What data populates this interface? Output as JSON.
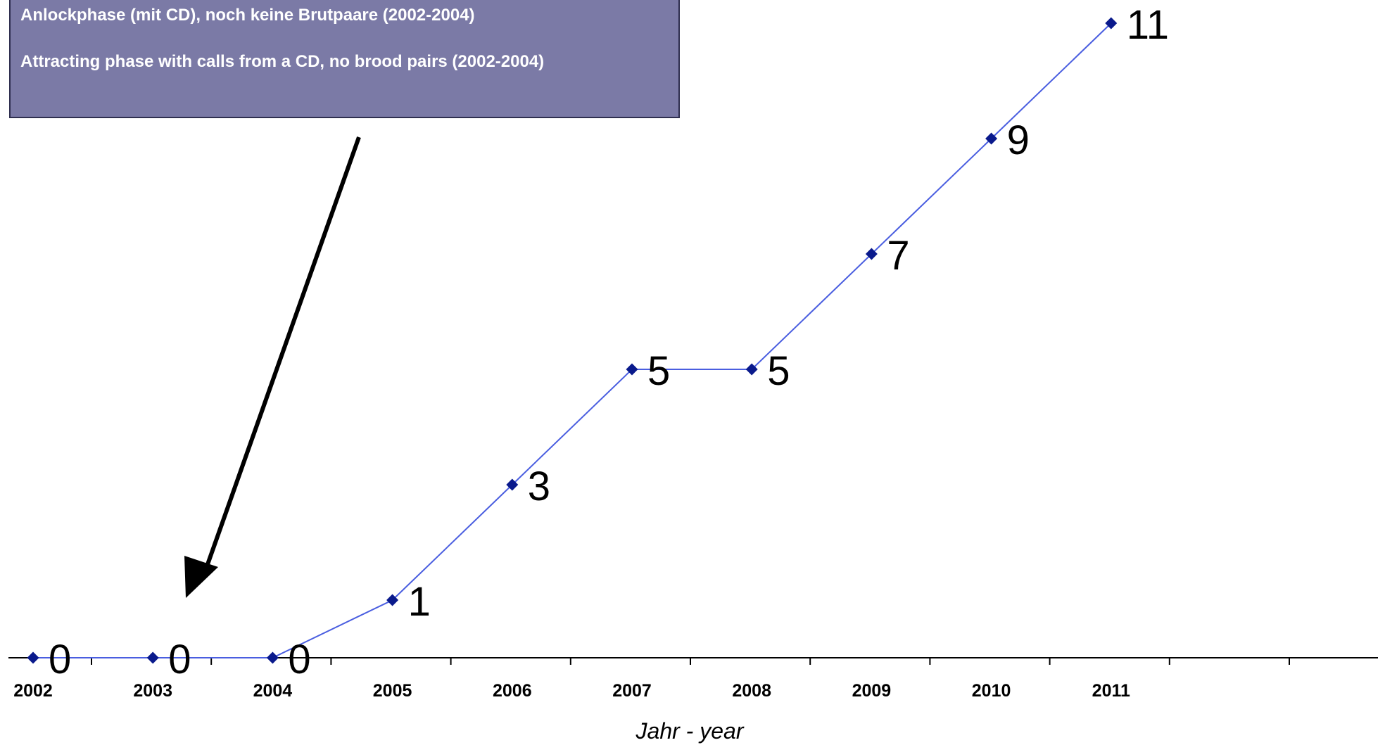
{
  "annotation": {
    "line_de": "Anlockphase (mit CD), noch keine Brutpaare (2002-2004)",
    "line_en": "Attracting phase with calls from a CD, no brood pairs (2002-2004)",
    "background_color": "#7b7aa6",
    "text_color": "#ffffff"
  },
  "chart_data": {
    "type": "line",
    "categories": [
      "2002",
      "2003",
      "2004",
      "2005",
      "2006",
      "2007",
      "2008",
      "2009",
      "2010",
      "2011"
    ],
    "values": [
      0,
      0,
      0,
      1,
      3,
      5,
      5,
      7,
      9,
      11
    ],
    "data_labels": [
      "0",
      "0",
      "0",
      "1",
      "3",
      "5",
      "5",
      "7",
      "9",
      "11"
    ],
    "title": "",
    "xlabel": "Jahr - year",
    "ylabel": "",
    "ylim": [
      0,
      11
    ],
    "grid": false,
    "legend": "none",
    "line_color": "#4a5ee0",
    "marker_color": "#0a1a8c"
  }
}
